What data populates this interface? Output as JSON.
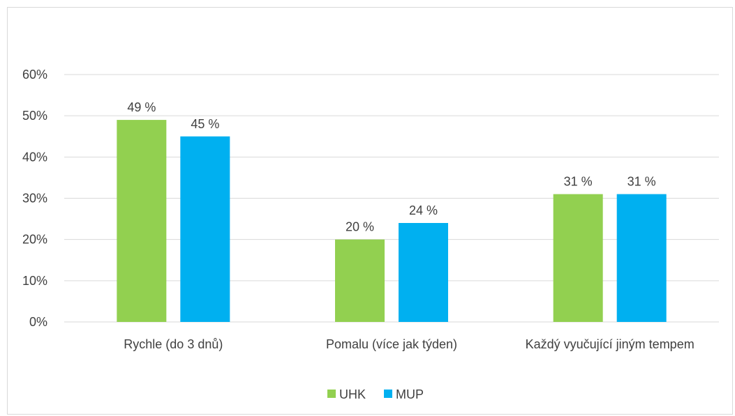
{
  "chart_data": {
    "type": "bar",
    "categories": [
      "Rychle (do 3 dnů)",
      "Pomalu (více jak týden)",
      "Každý vyučující jiným tempem"
    ],
    "series": [
      {
        "name": "UHK",
        "values": [
          49,
          20,
          31
        ],
        "labels": [
          "49 %",
          "20 %",
          "31 %"
        ],
        "color": "#92d050"
      },
      {
        "name": "MUP",
        "values": [
          45,
          24,
          31
        ],
        "labels": [
          "45 %",
          "24 %",
          "31 %"
        ],
        "color": "#00b0f0"
      }
    ],
    "y_ticks": [
      "0%",
      "10%",
      "20%",
      "30%",
      "40%",
      "50%",
      "60%"
    ],
    "ylim": [
      0,
      60
    ],
    "grid": true,
    "legend_position": "bottom",
    "title": "",
    "xlabel": "",
    "ylabel": ""
  }
}
